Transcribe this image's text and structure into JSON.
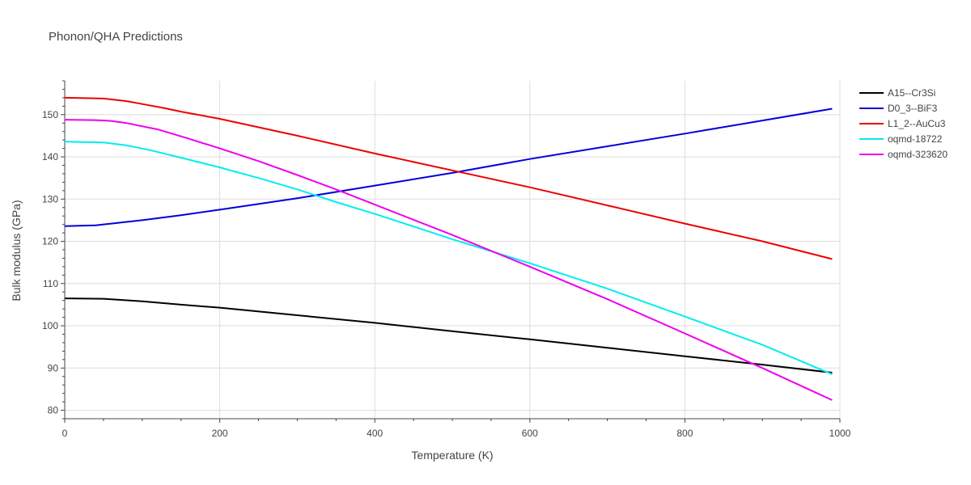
{
  "chart_data": {
    "type": "line",
    "title": "Phonon/QHA Predictions",
    "xlabel": "Temperature (K)",
    "ylabel": "Bulk modulus (GPa)",
    "xlim": [
      0,
      1000
    ],
    "ylim": [
      78,
      158
    ],
    "xticks": [
      0,
      200,
      400,
      600,
      800,
      1000
    ],
    "yticks": [
      80,
      90,
      100,
      110,
      120,
      130,
      140,
      150
    ],
    "grid": true,
    "legend_position": "top-right",
    "series": [
      {
        "name": "A15--Cr3Si",
        "color": "#000000",
        "x": [
          0,
          50,
          100,
          150,
          200,
          300,
          400,
          500,
          600,
          700,
          800,
          900,
          990
        ],
        "y": [
          106.5,
          106.4,
          105.8,
          105.0,
          104.3,
          102.5,
          100.7,
          98.7,
          96.8,
          94.8,
          92.8,
          90.8,
          88.9
        ]
      },
      {
        "name": "D0_3--BiF3",
        "color": "#0000dd",
        "x": [
          0,
          40,
          60,
          100,
          150,
          200,
          300,
          400,
          500,
          600,
          700,
          800,
          900,
          990
        ],
        "y": [
          123.6,
          123.8,
          124.2,
          125.0,
          126.2,
          127.5,
          130.2,
          133.2,
          136.2,
          139.5,
          142.5,
          145.5,
          148.6,
          151.4
        ]
      },
      {
        "name": "L1_2--AuCu3",
        "color": "#ee0000",
        "x": [
          0,
          50,
          80,
          100,
          130,
          150,
          200,
          300,
          400,
          500,
          600,
          700,
          800,
          900,
          990
        ],
        "y": [
          154.0,
          153.8,
          153.2,
          152.5,
          151.5,
          150.7,
          149.0,
          145.0,
          140.8,
          136.8,
          132.8,
          128.5,
          124.2,
          120.0,
          115.8
        ]
      },
      {
        "name": "oqmd-18722",
        "color": "#00eeee",
        "x": [
          0,
          50,
          80,
          110,
          150,
          200,
          250,
          300,
          350,
          400,
          500,
          600,
          700,
          800,
          900,
          990
        ],
        "y": [
          143.6,
          143.4,
          142.7,
          141.6,
          139.8,
          137.5,
          135.0,
          132.3,
          129.3,
          126.5,
          120.5,
          114.8,
          108.8,
          102.2,
          95.5,
          88.5
        ]
      },
      {
        "name": "oqmd-323620",
        "color": "#ee00ee",
        "x": [
          0,
          40,
          60,
          80,
          120,
          160,
          200,
          250,
          300,
          350,
          400,
          500,
          600,
          700,
          800,
          900,
          990
        ],
        "y": [
          148.8,
          148.7,
          148.5,
          148.0,
          146.5,
          144.3,
          142.0,
          139.0,
          135.7,
          132.3,
          128.7,
          121.5,
          114.0,
          106.3,
          98.2,
          90.0,
          82.4
        ]
      }
    ]
  }
}
